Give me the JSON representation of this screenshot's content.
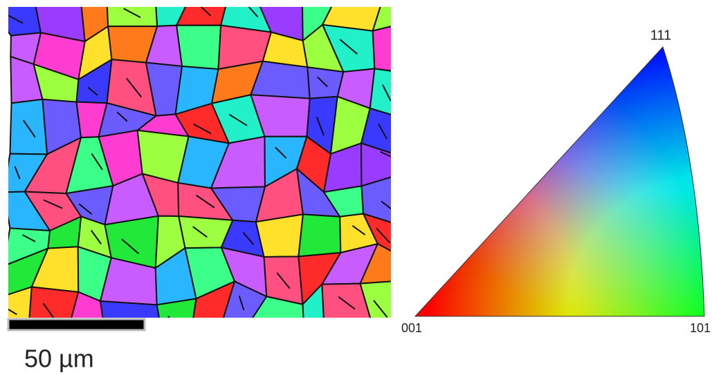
{
  "scale_bar": {
    "label": "50 µm"
  },
  "ipf": {
    "labels": {
      "top": "111",
      "left": "001",
      "right": "101"
    }
  }
}
